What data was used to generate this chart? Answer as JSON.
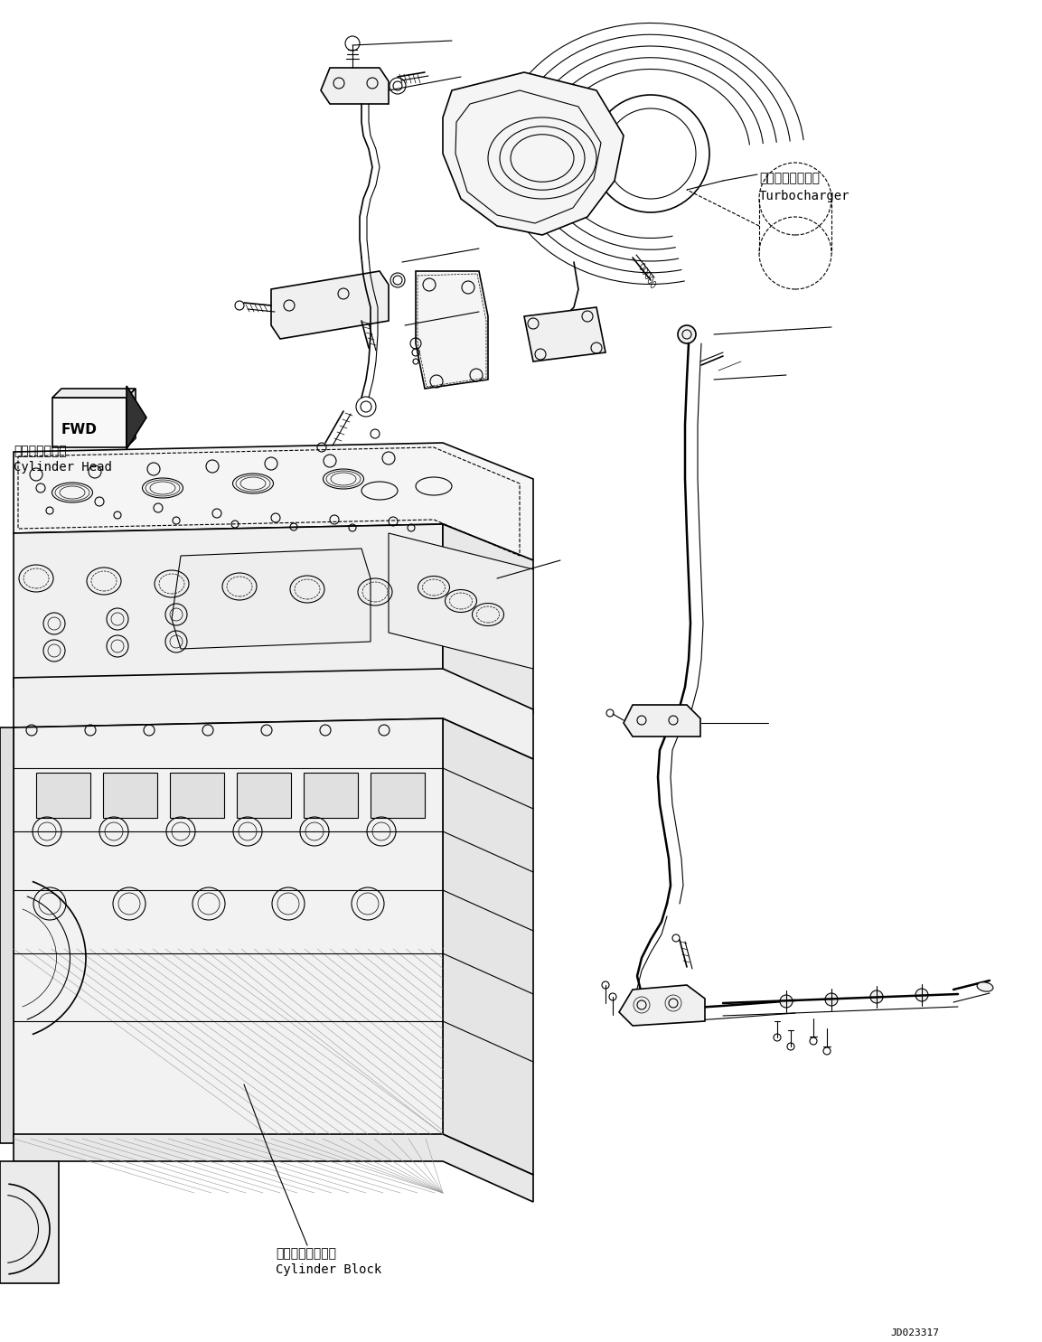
{
  "background_color": "#ffffff",
  "line_color": "#000000",
  "fig_width": 11.53,
  "fig_height": 14.85,
  "dpi": 100,
  "labels": {
    "turbocharger_ja": "ターボチャージャ",
    "turbocharger_en": "Turbocharger",
    "cylinder_head_ja": "シリンダヘッド",
    "cylinder_head_en": "Cylinder Head",
    "cylinder_block_ja": "シリンダブロック",
    "cylinder_block_en": "Cylinder Block",
    "fwd": "FWD",
    "drawing_no": "JD023317"
  },
  "font_sizes": {
    "label_ja": 10,
    "label_en": 10,
    "drawing_no": 8,
    "fwd": 11
  },
  "colors": {
    "line": "#000000",
    "fill_light": "#f8f8f8",
    "fill_mid": "#f0f0f0",
    "fill_dark": "#e0e0e0",
    "hatch": "#cccccc"
  }
}
